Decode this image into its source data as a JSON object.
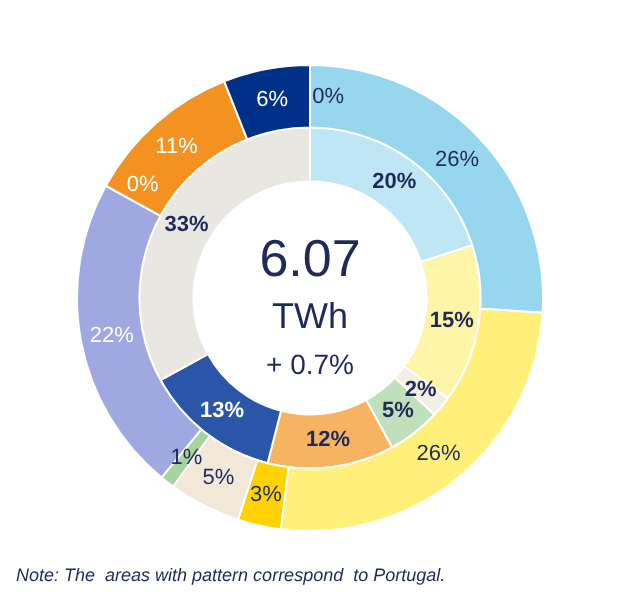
{
  "chart_data": {
    "type": "donut",
    "series": [
      {
        "values": [
          0,
          26,
          26,
          3,
          5,
          1,
          22,
          0,
          11,
          6
        ],
        "colors": [
          "#c8c8c8",
          "#97d7ee",
          "#fff07a",
          "#ffd200",
          "#f2e8d8",
          "#a6d3a0",
          "#a0a8e2",
          "#b0b0b0",
          "#f39220",
          "#003087"
        ],
        "value_labels": [
          "0%",
          "26%",
          "26%",
          "3%",
          "5%",
          "1%",
          "22%",
          "0%",
          "11%",
          "6%"
        ]
      },
      {
        "values": [
          20,
          15,
          2,
          5,
          12,
          13,
          33
        ],
        "colors": [
          "#bfe6f4",
          "#fff5a8",
          "#f4ede2",
          "#bfe0ba",
          "#f7b360",
          "#2a55a8",
          "#e9e7e1"
        ],
        "value_labels": [
          "20%",
          "15%",
          "2%",
          "5%",
          "12%",
          "13%",
          "33%"
        ]
      }
    ],
    "annotations": [
      "6.07",
      "TWh",
      "+ 0.7%",
      "Note: The  areas with pattern correspond  to Portugal."
    ]
  }
}
